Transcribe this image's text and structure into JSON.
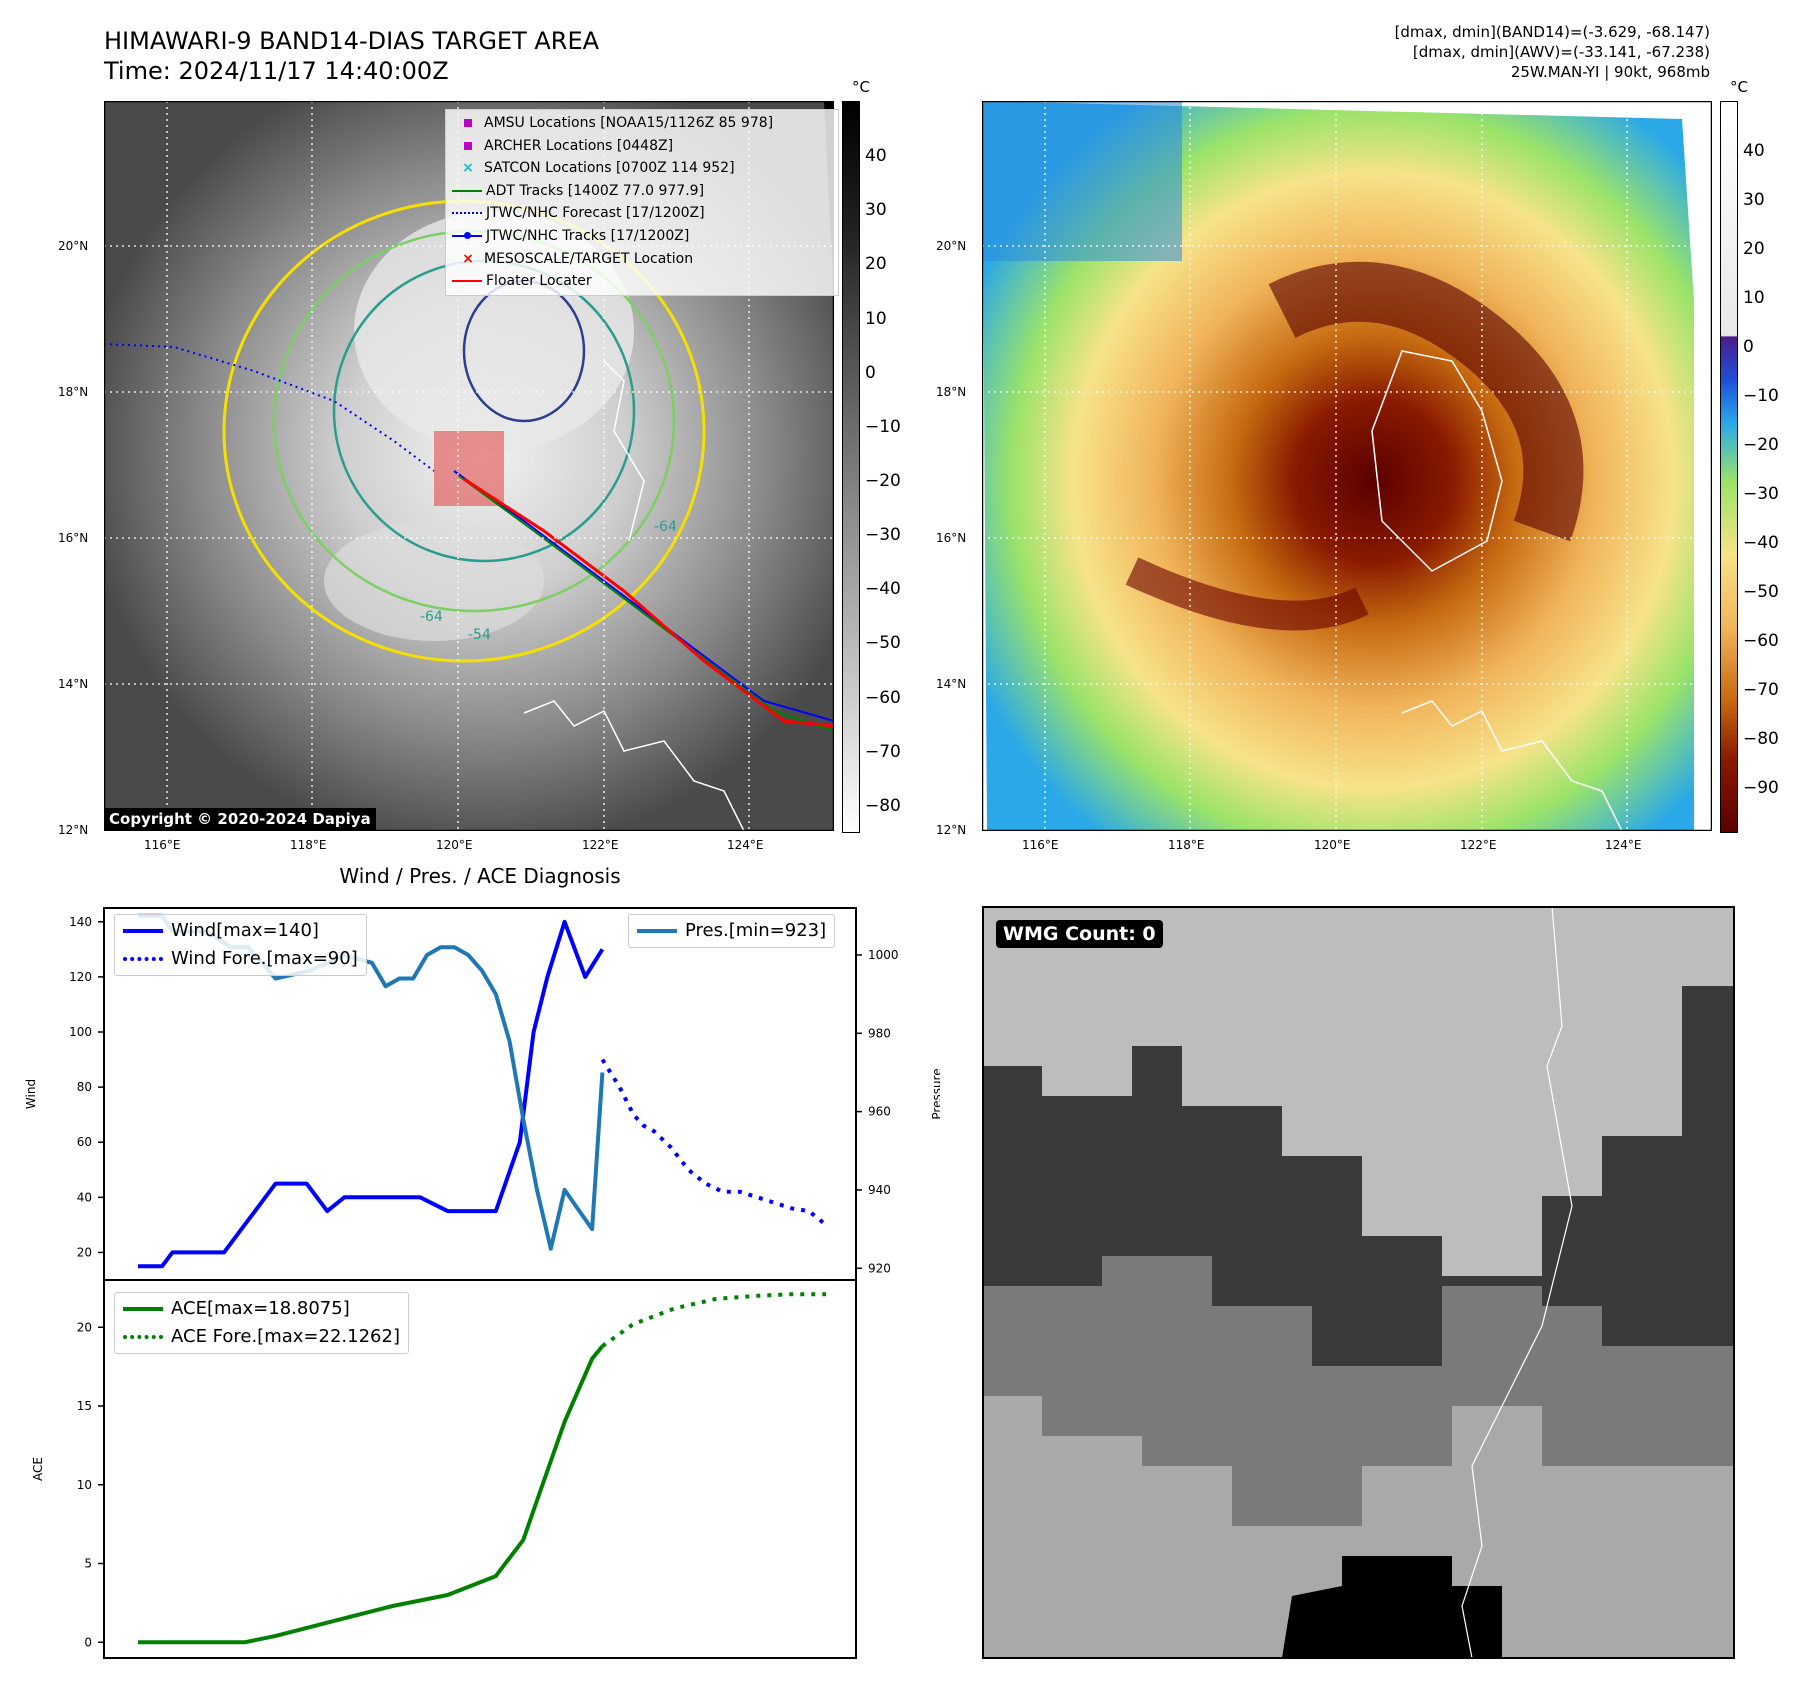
{
  "header": {
    "title_line1": "HIMAWARI-9 BAND14-DIAS TARGET AREA",
    "title_line2": "Time: 2024/11/17 14:40:00Z",
    "info_line1": "[dmax, dmin](BAND14)=(-3.629, -68.147)",
    "info_line2": "[dmax, dmin](AWV)=(-33.141, -67.238)",
    "info_line3": "25W.MAN-YI | 90kt, 968mb"
  },
  "copyright": "Copyright © 2020-2024 Dapiya",
  "wmg_label": "WMG Count: 0",
  "colors": {
    "wind": "#0000ff",
    "pressure": "#1f77b4",
    "ace": "#008000",
    "amsu": "#c000c0",
    "archer": "#c000c0",
    "satcon": "#17becf",
    "adt": "#008000",
    "forecast": "#0000ff",
    "target": "#ff0000",
    "floater": "#ff0000"
  },
  "map": {
    "lon_labels": [
      "116°E",
      "118°E",
      "120°E",
      "122°E",
      "124°E"
    ],
    "lat_labels": [
      "20°N",
      "18°N",
      "16°N",
      "14°N",
      "12°N"
    ],
    "colorbar_unit": "°C",
    "left_colorbar_ticks": [
      "40",
      "30",
      "20",
      "10",
      "0",
      "−10",
      "−20",
      "−30",
      "−40",
      "−50",
      "−60",
      "−70",
      "−80"
    ],
    "right_colorbar_ticks": [
      "40",
      "30",
      "20",
      "10",
      "0",
      "−10",
      "−20",
      "−30",
      "−40",
      "−50",
      "−60",
      "−70",
      "−80",
      "−90"
    ],
    "legend": [
      {
        "label": "AMSU Locations [NOAA15/1126Z 85 978]",
        "icon": "square-marker"
      },
      {
        "label": "ARCHER Locations [0448Z]",
        "icon": "square-marker"
      },
      {
        "label": "SATCON Locations [0700Z 114 952]",
        "icon": "x-marker"
      },
      {
        "label": "ADT Tracks [1400Z 77.0 977.9]",
        "icon": "line"
      },
      {
        "label": "JTWC/NHC Forecast [17/1200Z]",
        "icon": "dotted-line"
      },
      {
        "label": "JTWC/NHC Tracks [17/1200Z]",
        "icon": "dot-line"
      },
      {
        "label": "MESOSCALE/TARGET Location",
        "icon": "x-marker"
      },
      {
        "label": "Floater Locater",
        "icon": "line"
      }
    ],
    "contour_labels": [
      "-64",
      "-54",
      "-64"
    ]
  },
  "chart_data": [
    {
      "type": "line",
      "title": "Wind / Pres. / ACE Diagnosis",
      "ylabel": "Wind",
      "ylabel_right": "Pressure",
      "ylim": [
        10,
        145
      ],
      "ylim_right": [
        917,
        1012
      ],
      "xlim": [
        0,
        1
      ],
      "yticks": [
        "20",
        "40",
        "60",
        "80",
        "100",
        "120",
        "140"
      ],
      "yticks_right": [
        "920",
        "940",
        "960",
        "980",
        "1000"
      ],
      "legend_left": [
        "Wind[max=140]",
        "Wind Fore.[max=90]"
      ],
      "legend_right": [
        "Pres.[min=923]"
      ],
      "series": [
        {
          "name": "Wind[max=140]",
          "style": "solid",
          "x": [
            0,
            0.035,
            0.05,
            0.125,
            0.2,
            0.245,
            0.275,
            0.3,
            0.41,
            0.45,
            0.52,
            0.555,
            0.575,
            0.595,
            0.62,
            0.65,
            0.675
          ],
          "values": [
            15,
            15,
            20,
            20,
            45,
            45,
            35,
            40,
            40,
            35,
            35,
            60,
            100,
            120,
            140,
            120,
            130
          ]
        },
        {
          "name": "Wind Fore.[max=90]",
          "style": "dotted",
          "x": [
            0.675,
            0.7,
            0.72,
            0.735,
            0.75,
            0.775,
            0.8,
            0.825,
            0.85,
            0.875,
            0.9,
            0.925,
            0.95,
            0.975,
            1.0
          ],
          "values": [
            90,
            80,
            70,
            66,
            64,
            58,
            50,
            45,
            42,
            42,
            40,
            38,
            36,
            35,
            30
          ]
        },
        {
          "name": "Pres.[min=923]",
          "style": "solid",
          "x": [
            0,
            0.035,
            0.05,
            0.1,
            0.135,
            0.16,
            0.2,
            0.25,
            0.3,
            0.34,
            0.36,
            0.38,
            0.4,
            0.42,
            0.44,
            0.46,
            0.48,
            0.5,
            0.52,
            0.54,
            0.55,
            0.56,
            0.58,
            0.6,
            0.62,
            0.64,
            0.66,
            0.675
          ],
          "values": [
            1010,
            1010,
            1006,
            1006,
            1002,
            1002,
            994,
            996,
            1000,
            998,
            992,
            994,
            994,
            1000,
            1002,
            1002,
            1000,
            996,
            990,
            978,
            968,
            958,
            940,
            925,
            940,
            935,
            930,
            970
          ]
        }
      ]
    },
    {
      "type": "line",
      "ylabel": "ACE",
      "ylim": [
        -1,
        23
      ],
      "xlim": [
        0,
        1
      ],
      "yticks": [
        "0",
        "5",
        "10",
        "15",
        "20"
      ],
      "legend": [
        "ACE[max=18.8075]",
        "ACE Fore.[max=22.1262]"
      ],
      "series": [
        {
          "name": "ACE[max=18.8075]",
          "style": "solid",
          "x": [
            0,
            0.155,
            0.2,
            0.28,
            0.37,
            0.45,
            0.52,
            0.56,
            0.58,
            0.6,
            0.62,
            0.64,
            0.66,
            0.675
          ],
          "values": [
            0,
            0,
            0.4,
            1.3,
            2.3,
            3.0,
            4.2,
            6.5,
            9.0,
            11.5,
            14,
            16,
            18,
            18.8
          ]
        },
        {
          "name": "ACE Fore.[max=22.1262]",
          "style": "dotted",
          "x": [
            0.675,
            0.72,
            0.78,
            0.84,
            0.9,
            0.95,
            1.0
          ],
          "values": [
            18.8,
            20.2,
            21.2,
            21.8,
            22.0,
            22.1,
            22.1
          ]
        }
      ]
    }
  ]
}
